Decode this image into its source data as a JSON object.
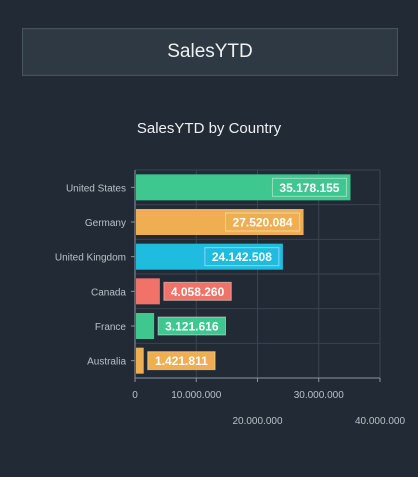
{
  "header": {
    "title": "SalesYTD"
  },
  "chart_data": {
    "type": "bar",
    "orientation": "horizontal",
    "title": "SalesYTD by Country",
    "categories": [
      "United States",
      "Germany",
      "United Kingdom",
      "Canada",
      "France",
      "Australia"
    ],
    "values": [
      35178155,
      27520084,
      24142508,
      4058260,
      3121616,
      1421811
    ],
    "data_labels": [
      "35.178.155",
      "27.520.084",
      "24.142.508",
      "4.058.260",
      "3.121.616",
      "1.421.811"
    ],
    "colors": [
      "#3ec78f",
      "#eeae51",
      "#1fbcdf",
      "#f07268",
      "#3ec78f",
      "#eeae51"
    ],
    "x_ticks": [
      0,
      10000000,
      20000000,
      30000000,
      40000000
    ],
    "x_tick_labels": [
      "0",
      "10.000.000",
      "20.000.000",
      "30.000.000",
      "40.000.000"
    ],
    "xlim": [
      0,
      40000000
    ],
    "grid": true
  }
}
